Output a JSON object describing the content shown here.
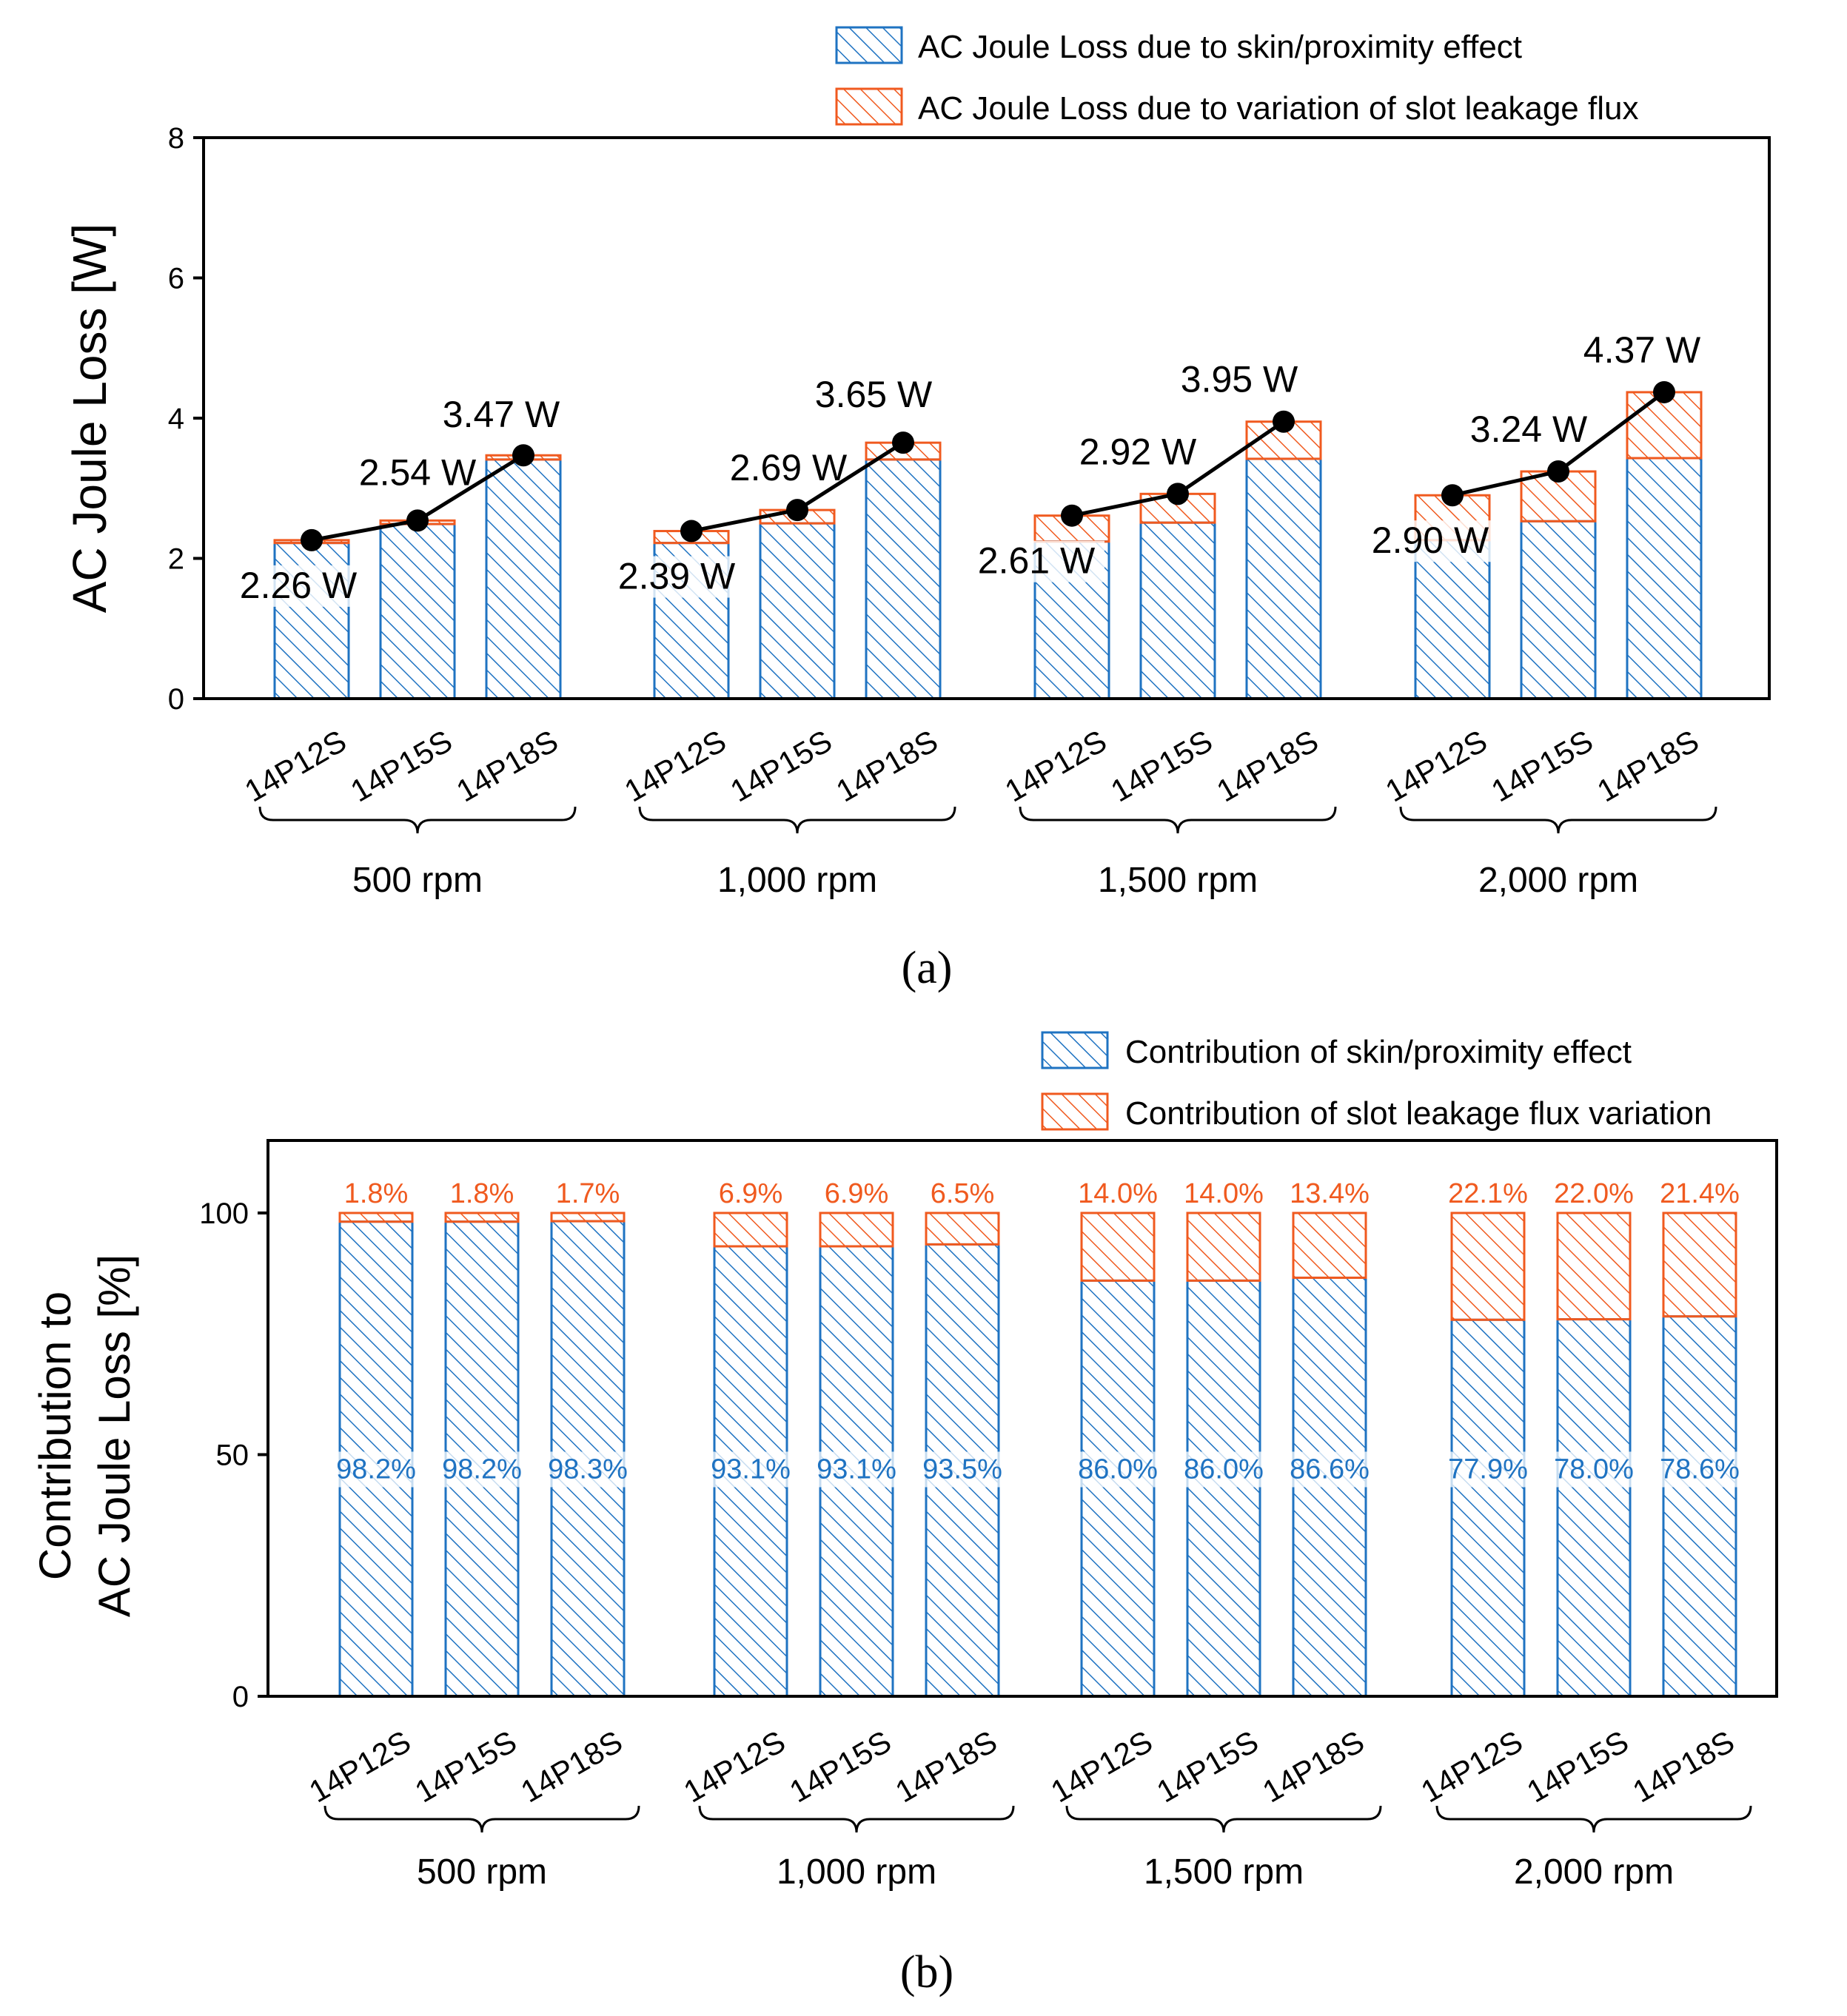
{
  "colors": {
    "skin": "#1f73c2",
    "slot": "#f05a1f",
    "line": "#000000"
  },
  "chart_data": [
    {
      "type": "bar",
      "panel_label": "(a)",
      "stacked": true,
      "ylabel": "AC Joule Loss [W]",
      "ylim": [
        0,
        8
      ],
      "yticks": [
        "0",
        "2",
        "4",
        "6",
        "8"
      ],
      "groups": [
        "500 rpm",
        "1,000 rpm",
        "1,500 rpm",
        "2,000 rpm"
      ],
      "categories": [
        "14P12S",
        "14P15S",
        "14P18S"
      ],
      "legend": [
        "AC Joule Loss due to skin/proximity effect",
        "AC Joule Loss due to variation of slot leakage flux"
      ],
      "series": [
        {
          "name": "AC Joule Loss due to skin/proximity effect",
          "values": [
            [
              2.22,
              2.49,
              3.41
            ],
            [
              2.22,
              2.5,
              3.41
            ],
            [
              2.24,
              2.51,
              3.42
            ],
            [
              2.26,
              2.53,
              3.43
            ]
          ]
        },
        {
          "name": "AC Joule Loss due to variation of slot leakage flux",
          "values": [
            [
              0.04,
              0.05,
              0.06
            ],
            [
              0.17,
              0.19,
              0.24
            ],
            [
              0.37,
              0.41,
              0.53
            ],
            [
              0.64,
              0.71,
              0.94
            ]
          ]
        }
      ],
      "totals": [
        [
          2.26,
          2.54,
          3.47
        ],
        [
          2.39,
          2.69,
          3.65
        ],
        [
          2.61,
          2.92,
          3.95
        ],
        [
          2.9,
          3.24,
          4.37
        ]
      ],
      "total_labels": [
        [
          "2.26 W",
          "2.54 W",
          "3.47 W"
        ],
        [
          "2.39 W",
          "2.69 W",
          "3.65 W"
        ],
        [
          "2.61 W",
          "2.92 W",
          "3.95 W"
        ],
        [
          "2.90 W",
          "3.24 W",
          "4.37 W"
        ]
      ]
    },
    {
      "type": "bar",
      "panel_label": "(b)",
      "stacked": true,
      "ylabel": [
        "Contribution to",
        "AC Joule Loss [%]"
      ],
      "ylim": [
        0,
        115
      ],
      "yticks": [
        "0",
        "50",
        "100"
      ],
      "groups": [
        "500 rpm",
        "1,000 rpm",
        "1,500 rpm",
        "2,000 rpm"
      ],
      "categories": [
        "14P12S",
        "14P15S",
        "14P18S"
      ],
      "legend": [
        "Contribution of skin/proximity effect",
        "Contribution of slot leakage flux variation"
      ],
      "series": [
        {
          "name": "Contribution of skin/proximity effect",
          "values": [
            [
              98.2,
              98.2,
              98.3
            ],
            [
              93.1,
              93.1,
              93.5
            ],
            [
              86.0,
              86.0,
              86.6
            ],
            [
              77.9,
              78.0,
              78.6
            ]
          ]
        },
        {
          "name": "Contribution of slot leakage flux variation",
          "values": [
            [
              1.8,
              1.8,
              1.7
            ],
            [
              6.9,
              6.9,
              6.5
            ],
            [
              14.0,
              14.0,
              13.4
            ],
            [
              22.1,
              22.0,
              21.4
            ]
          ]
        }
      ],
      "skin_labels": [
        [
          "98.2%",
          "98.2%",
          "98.3%"
        ],
        [
          "93.1%",
          "93.1%",
          "93.5%"
        ],
        [
          "86.0%",
          "86.0%",
          "86.6%"
        ],
        [
          "77.9%",
          "78.0%",
          "78.6%"
        ]
      ],
      "slot_labels": [
        [
          "1.8%",
          "1.8%",
          "1.7%"
        ],
        [
          "6.9%",
          "6.9%",
          "6.5%"
        ],
        [
          "14.0%",
          "14.0%",
          "13.4%"
        ],
        [
          "22.1%",
          "22.0%",
          "21.4%"
        ]
      ]
    }
  ]
}
